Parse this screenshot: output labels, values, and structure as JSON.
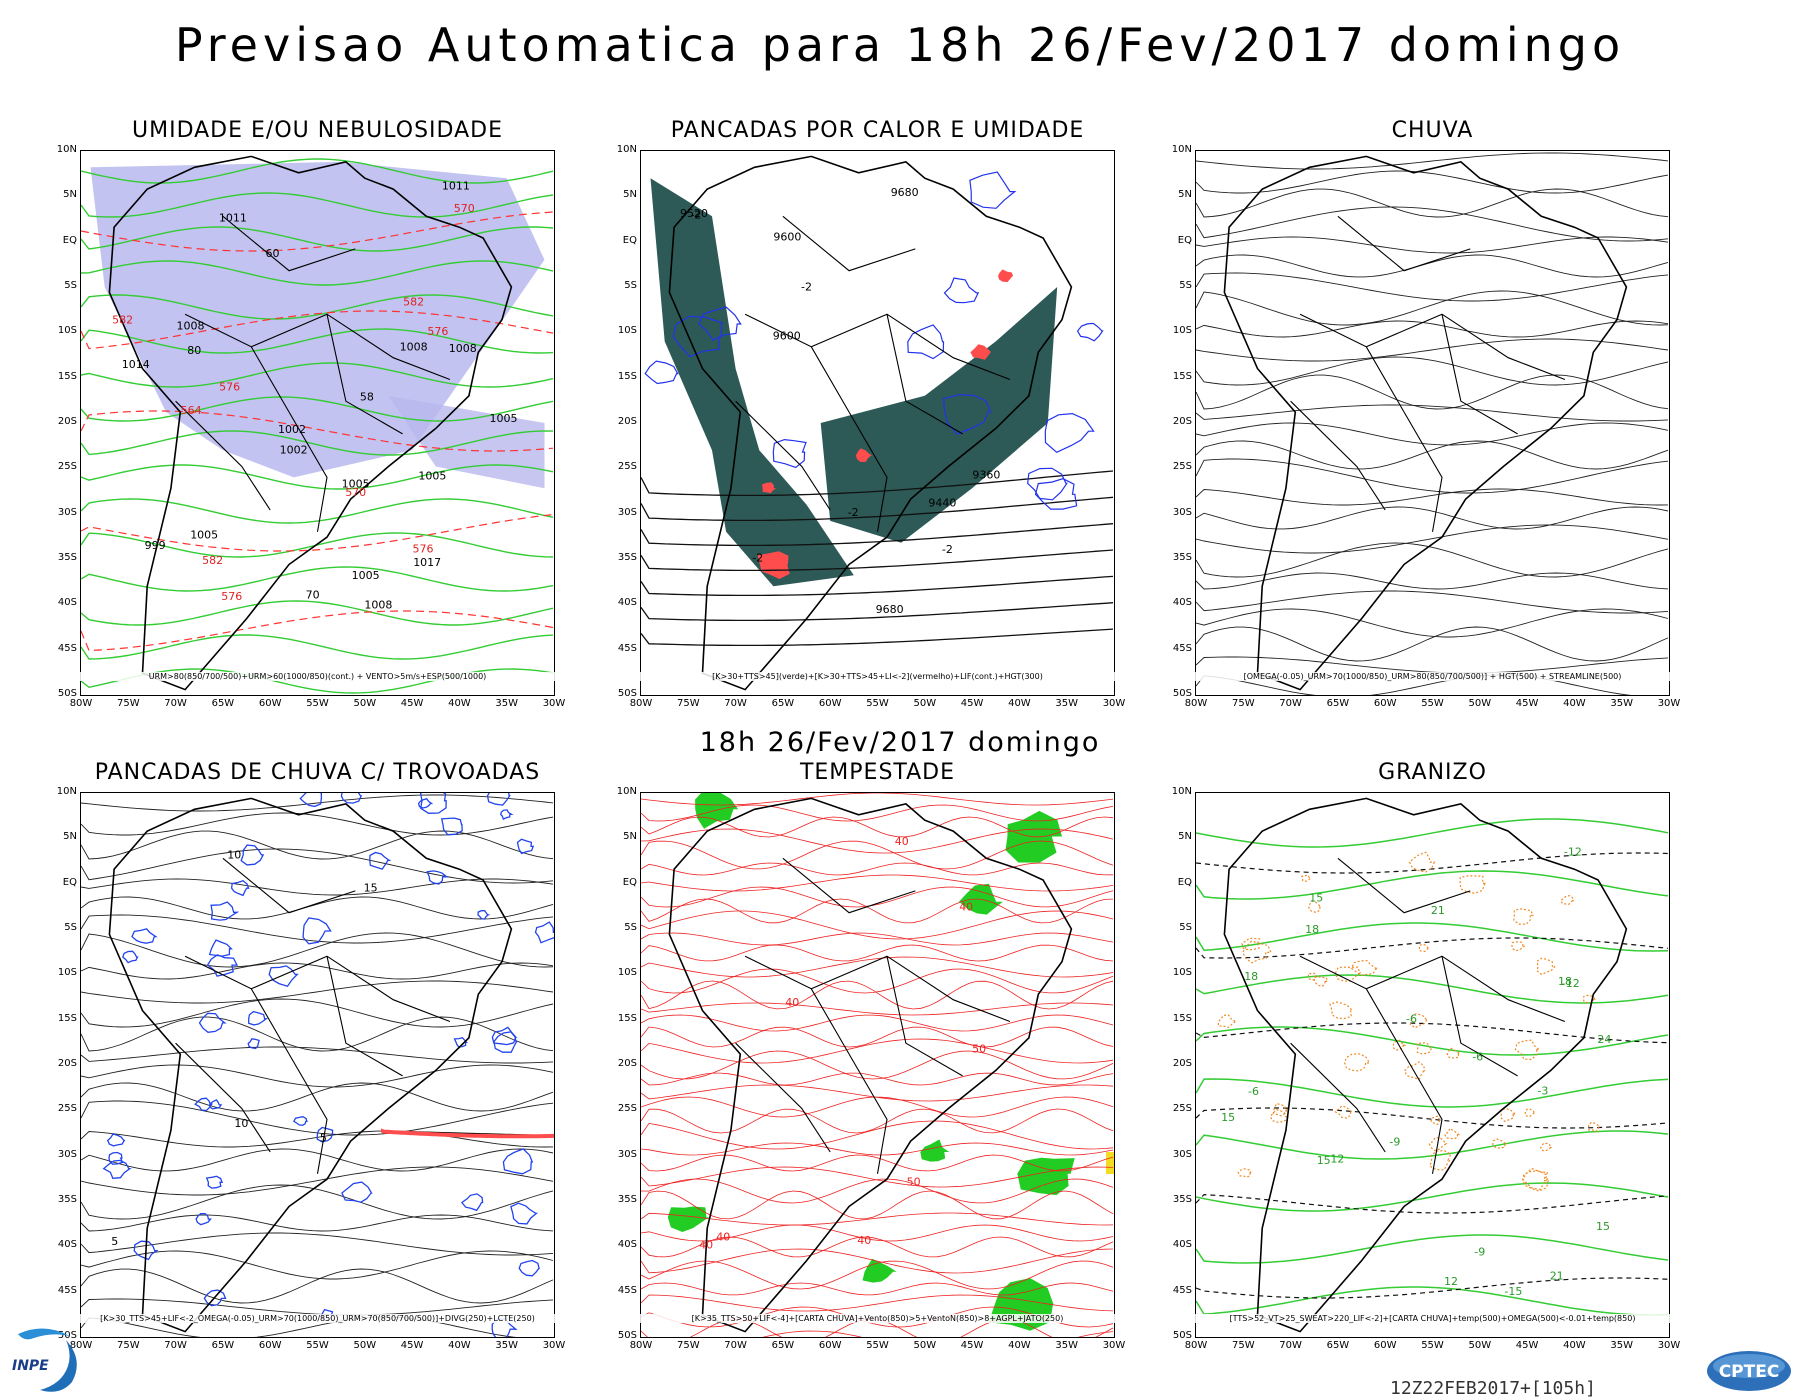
{
  "main_title": "Previsao Automatica  para 18h 26/Fev/2017 domingo",
  "subtitle": "18h 26/Fev/2017 domingo",
  "axes": {
    "lat_labels": [
      "10N",
      "5N",
      "EQ",
      "5S",
      "10S",
      "15S",
      "20S",
      "25S",
      "30S",
      "35S",
      "40S",
      "45S",
      "50S"
    ],
    "lon_labels": [
      "80W",
      "75W",
      "70W",
      "65W",
      "60W",
      "55W",
      "50W",
      "45W",
      "40W",
      "35W",
      "30W"
    ]
  },
  "panels": [
    {
      "title": "UMIDADE E/OU NEBULOSIDADE",
      "caption": "URM>80(850/700/500)+URM>60(1000/850)(cont.) + VENTO>5m/s+ESP(500/1000)",
      "colors": {
        "fill": "#b8b8ee",
        "contour": "#33cc33",
        "dashed": "#ff3333"
      },
      "labels": [
        "1008",
        "1011",
        "1005",
        "1008",
        "576",
        "1005",
        "1005",
        "576",
        "1002",
        "582",
        "999",
        "582",
        "1002",
        "1005",
        "1008",
        "1011",
        "1014",
        "570",
        "1005",
        "1008",
        "576",
        "570",
        "576",
        "1017",
        "58",
        "582",
        "564",
        "80",
        "70",
        "60"
      ]
    },
    {
      "title": "PANCADAS POR CALOR E UMIDADE",
      "caption": "[K>30+TTS>45](verde)+[K>30+TTS>45+LI<-2](vermelho)+LIF(cont.)+HGT(300)",
      "colors": {
        "fill": "#2d5a56",
        "red": "#ff4d4d",
        "contour": "#2233ee"
      },
      "labels": [
        "-2",
        "9680",
        "9680",
        "9600",
        "9600",
        "9520",
        "9440",
        "9360",
        "-2",
        "-2",
        "-2",
        "-2"
      ]
    },
    {
      "title": "CHUVA",
      "caption": "[OMEGA(-0.05)_URM>70(1000/850)_URM>80(850/700/500)] + HGT(500) + STREAMLINE(500)",
      "colors": {
        "streamline": "#111111"
      },
      "labels": []
    },
    {
      "title": "PANCADAS DE CHUVA C/ TROVOADAS",
      "caption": "[K>30_TTS>45+LIF<-2_OMEGA(-0.05)_URM>70(1000/850)_URM>70(850/700/500)]+DIVG(250)+LCTE(250)",
      "colors": {
        "contour": "#2244ee",
        "streamline": "#111111",
        "red": "#ff4d4d"
      },
      "labels": [
        "10",
        "15",
        "10",
        "5",
        "5"
      ]
    },
    {
      "title": "TEMPESTADE",
      "caption": "[K>35_TTS>50+LIF<-4]+[CARTA CHUVA]+Vento(850)>5+VentoN(850)>8+AGPL+JATO(250)",
      "colors": {
        "contour": "#ee2222",
        "fill": "#22cc22",
        "yellow": "#f2dd22"
      },
      "labels": [
        "40",
        "40",
        "50",
        "40",
        "40",
        "50",
        "40",
        "40"
      ]
    },
    {
      "title": "GRANIZO",
      "caption": "[TTS>52_VT>25_SWEAT>220_LIF<-2]+[CARTA CHUVA]+temp(500)+OMEGA(500)<-0.01+temp(850)",
      "colors": {
        "green": "#33cc33",
        "orange": "#f08a24",
        "dashed": "#111111"
      },
      "labels": [
        "18",
        "21",
        "15",
        "-6",
        "-9",
        "-9",
        "-6",
        "12",
        "15",
        "18",
        "21",
        "-6",
        "-3",
        "12",
        "15",
        "24",
        "-12",
        "-15",
        "-12",
        "15",
        "18"
      ]
    }
  ],
  "run_label": "12Z22FEB2017+[105h]",
  "logos": {
    "inpe": "INPE",
    "cptec": "CPTEC"
  }
}
